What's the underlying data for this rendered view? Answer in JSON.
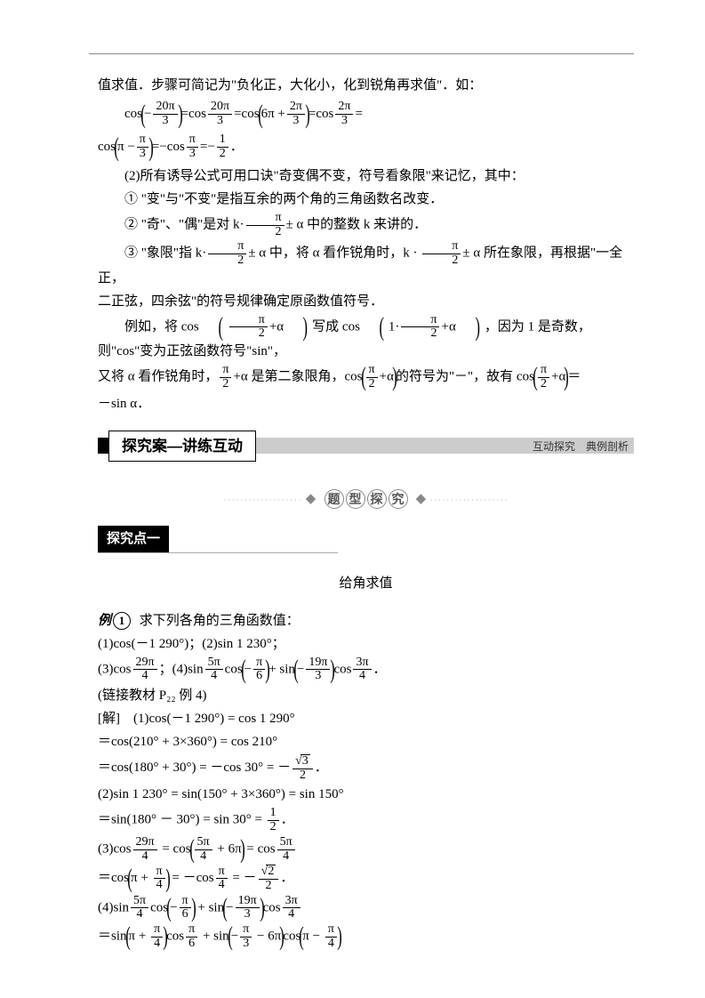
{
  "intro": {
    "line0": "值求值．步骤可简记为\"负化正，大化小，化到锐角再求值\"．如：",
    "line2": "(2)所有诱导公式可用口诀\"奇变偶不变，符号看象限\"来记忆，其中：",
    "line3": "① \"变\"与\"不变\"是指互余的两个角的三角函数名改变．",
    "line4a": "② \"奇\"、\"偶\"是对 k·",
    "line4b": "± α 中的整数 k 来讲的．",
    "line5a": "③ \"象限\"指 k·",
    "line5b": "± α 中，将 α 看作锐角时，k · ",
    "line5c": "± α 所在象限，再根据\"一全正，",
    "line6": "二正弦，四余弦\"的符号规律确定原函数值符号．",
    "line7a": "例如，将 cos",
    "line7b": "写成 cos",
    "line7c": "，因为 1 是奇数，则\"cos\"变为正弦函数符号\"sin\"，",
    "line8a": "又将 α 看作锐角时，",
    "line8b": "+α 是第二象限角，cos",
    "line8c": "的符号为\"－\"，故有 cos",
    "line8d": "＝",
    "line8e": "－sin α．"
  },
  "frac_pi2": {
    "num": "π",
    "den": "2"
  },
  "frac_20pi3": {
    "num": "20π",
    "den": "3"
  },
  "frac_2pi3": {
    "num": "2π",
    "den": "3"
  },
  "frac_pi3": {
    "num": "π",
    "den": "3"
  },
  "frac_12": {
    "num": "1",
    "den": "2"
  },
  "section": {
    "label": "探究案—讲练互动",
    "subtitle": "互动探究　典例剖析"
  },
  "deco": {
    "c1": "题",
    "c2": "型",
    "c3": "探",
    "c4": "究"
  },
  "topic1": {
    "label": "探究点一",
    "title": "给角求值"
  },
  "example": {
    "badge": "例",
    "num": "1",
    "q": "求下列各角的三角函数值：",
    "q1": "(1)cos(－1 290°)；(2)sin 1 230°；",
    "q3a": "(3)cos",
    "q3b": "；(4)sin",
    "q3c": "cos",
    "q3d": "+ sin",
    "q3e": "cos",
    "q3f": "．",
    "link": "(链接教材 P₂₂ 例 4)",
    "sol": "[解]　(1)cos(－1 290°) = cos 1 290°",
    "s1a": "＝cos(210° + 3×360°) = cos 210°",
    "s1b": "＝cos(180° + 30°) = －cos 30° = －",
    "s2a": "(2)sin 1 230° = sin(150° + 3×360°) = sin 150°",
    "s2b": "＝sin(180° － 30°) = sin 30° = ",
    "s3a": "(3)cos",
    "s3eq": " = cos",
    "s3eq2": " = cos",
    "s3b": "＝cos",
    "s3c": " = －cos",
    "s3d": " = －",
    "s4a": "(4)sin",
    "s4b": "cos",
    "s4c": " + sin",
    "s4d": "cos",
    "s4e": "＝sin",
    "s4f": "cos",
    "s4g": " + sin",
    "s4h": "cos"
  },
  "frac_29pi4": {
    "num": "29π",
    "den": "4"
  },
  "frac_5pi4": {
    "num": "5π",
    "den": "4"
  },
  "frac_pi6": {
    "num": "π",
    "den": "6"
  },
  "frac_19pi3": {
    "num": "19π",
    "den": "3"
  },
  "frac_3pi4": {
    "num": "3π",
    "den": "4"
  },
  "frac_pi4": {
    "num": "π",
    "den": "4"
  },
  "frac_sqrt3_2": {
    "num": "√3",
    "den": "2"
  },
  "frac_sqrt2_2": {
    "num": "√2",
    "den": "2"
  }
}
